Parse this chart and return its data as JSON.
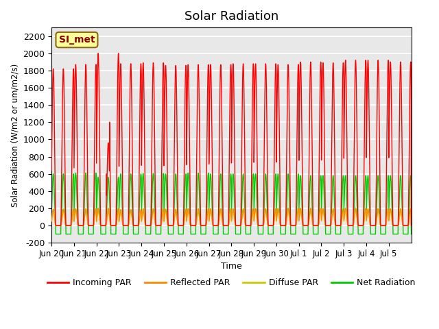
{
  "title": "Solar Radiation",
  "ylabel": "Solar Radiation (W/m2 or um/m2/s)",
  "xlabel": "Time",
  "ylim": [
    -200,
    2300
  ],
  "annotation": "SI_met",
  "background_color": "#e8e8e8",
  "grid_color": "white",
  "legend_entries": [
    "Incoming PAR",
    "Reflected PAR",
    "Diffuse PAR",
    "Net Radiation"
  ],
  "line_colors": [
    "#ff0000",
    "#ff8800",
    "#cccc00",
    "#00cc00"
  ],
  "yticks": [
    -200,
    0,
    200,
    400,
    600,
    800,
    1000,
    1200,
    1400,
    1600,
    1800,
    2000,
    2200
  ],
  "xtick_positions": [
    0,
    1,
    2,
    3,
    4,
    5,
    6,
    7,
    8,
    9,
    10,
    11,
    12,
    13,
    14,
    15
  ],
  "xtick_labels": [
    "Jun 20",
    "Jun 21",
    "Jun 22",
    "Jun 23",
    "Jun 24",
    "Jun 25",
    "Jun 26",
    "Jun 27",
    "Jun 28",
    "Jun 29",
    "Jun 30",
    "Jul 1",
    "Jul 2",
    "Jul 3",
    "Jul 4",
    "Jul 5"
  ],
  "num_days": 16,
  "n_points_per_day": 200,
  "incoming_peaks": [
    1820,
    1870,
    2000,
    1880,
    1890,
    1860,
    1870,
    1870,
    1880,
    1880,
    1870,
    1900,
    1890,
    1920,
    1920,
    1900
  ],
  "reflected_peaks": [
    190,
    195,
    200,
    185,
    195,
    190,
    195,
    195,
    195,
    195,
    200,
    200,
    195,
    200,
    195,
    195
  ],
  "diffuse_peaks": [
    170,
    175,
    165,
    165,
    165,
    160,
    160,
    165,
    165,
    165,
    170,
    165,
    170,
    165,
    165,
    165
  ],
  "net_peaks": [
    600,
    610,
    560,
    600,
    605,
    600,
    610,
    600,
    600,
    600,
    600,
    580,
    580,
    580,
    580,
    580
  ],
  "night_net": -100
}
